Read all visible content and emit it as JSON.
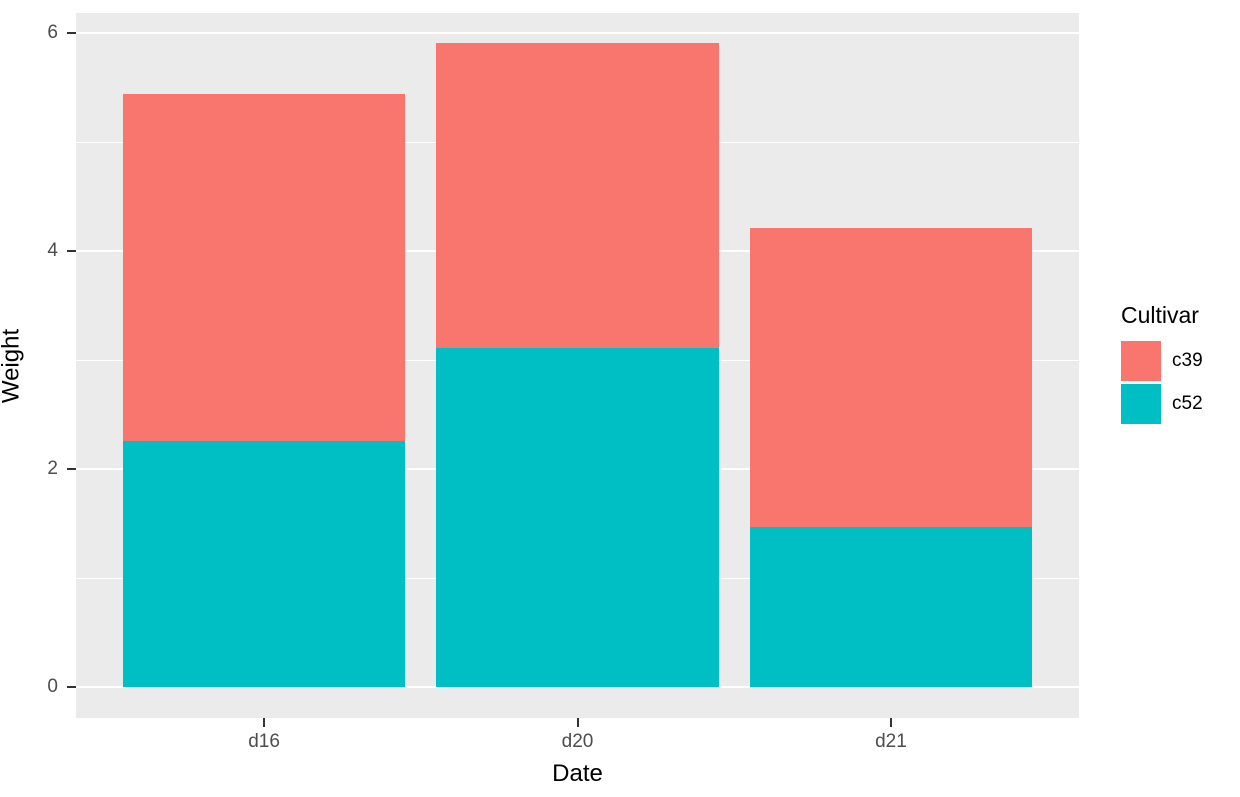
{
  "chart_data": {
    "type": "bar",
    "stacked": true,
    "title": "",
    "xlabel": "Date",
    "ylabel": "Weight",
    "legend_title": "Cultivar",
    "legend_position": "right",
    "categories": [
      "d16",
      "d20",
      "d21"
    ],
    "series": [
      {
        "name": "c39",
        "color": "#F8766D",
        "values": [
          3.18,
          2.8,
          2.74
        ]
      },
      {
        "name": "c52",
        "color": "#00BFC4",
        "values": [
          2.26,
          3.11,
          1.47
        ]
      }
    ],
    "stack_order_bottom_to_top": [
      "c52",
      "c39"
    ],
    "bar_totals": [
      5.44,
      5.91,
      4.21
    ],
    "ylim": [
      0,
      6
    ],
    "ytick_labels": [
      "0",
      "2",
      "4",
      "6"
    ],
    "ytick_values": [
      0,
      2,
      4,
      6
    ],
    "yminor_values": [
      1,
      3,
      5
    ],
    "grid": true,
    "panel_bg": "#EBEBEB",
    "grid_color": "#FFFFFF",
    "tick_mark_color": "#333333",
    "axis_text_color": "#4D4D4D",
    "axis_title_color": "#000000"
  },
  "legend": {
    "title": "Cultivar",
    "items": [
      {
        "label": "c39",
        "color": "#F8766D"
      },
      {
        "label": "c52",
        "color": "#00BFC4"
      }
    ]
  }
}
